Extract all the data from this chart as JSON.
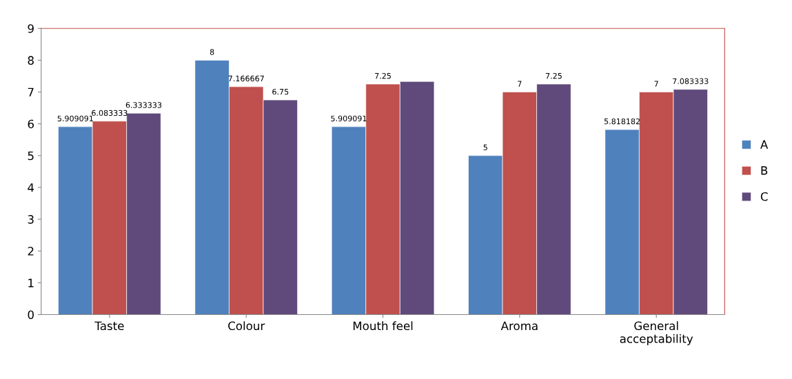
{
  "chart_data": {
    "type": "bar",
    "categories": [
      "Taste",
      "Colour",
      "Mouth feel",
      "Aroma",
      "General\nacceptability"
    ],
    "series": [
      {
        "name": "A",
        "color": "#4f81bd",
        "values": [
          5.909091,
          8,
          5.909091,
          5,
          5.818182
        ],
        "value_labels": [
          "5.909091",
          "8",
          "5.909091",
          "5",
          "5.818182"
        ]
      },
      {
        "name": "B",
        "color": "#c0504d",
        "values": [
          6.083333,
          7.166667,
          7.25,
          7,
          7
        ],
        "value_labels": [
          "6.083333",
          "7.166667",
          "7.25",
          "7",
          "7"
        ]
      },
      {
        "name": "C",
        "color": "#604a7b",
        "values": [
          6.333333,
          6.75,
          7.33,
          7.25,
          7.083333
        ],
        "value_labels": [
          "6.333333",
          "6.75",
          null,
          "7.25",
          "7.083333"
        ]
      }
    ],
    "ylim": [
      0,
      9
    ],
    "yticks": [
      0,
      1,
      2,
      3,
      4,
      5,
      6,
      7,
      8,
      9
    ],
    "grid": false,
    "legend": "right"
  }
}
